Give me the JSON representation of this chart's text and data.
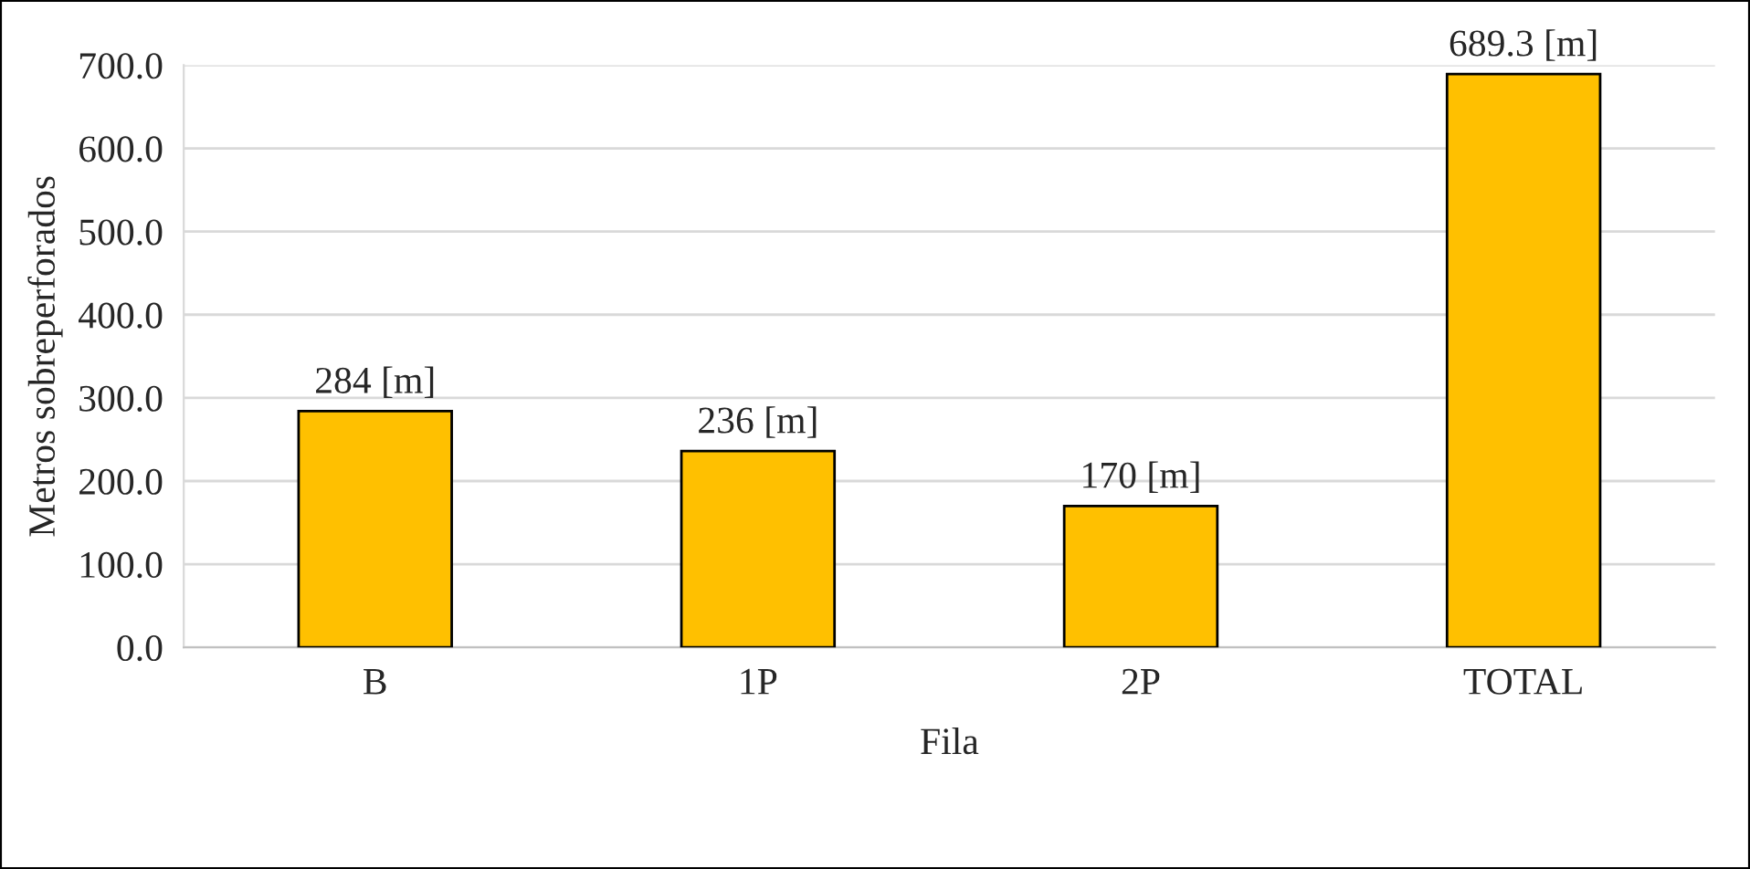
{
  "chart_data": {
    "type": "bar",
    "xlabel": "Fila",
    "ylabel": "Metros sobreperforados",
    "categories": [
      "B",
      "1P",
      "2P",
      "TOTAL"
    ],
    "values": [
      284,
      236,
      170,
      689.3
    ],
    "value_labels": [
      "284 [m]",
      "236 [m]",
      "170 [m]",
      "689.3 [m]"
    ],
    "color": "#ffc000",
    "ylim": [
      0,
      700
    ],
    "yticks": [
      {
        "value": 0,
        "label": "0.0"
      },
      {
        "value": 100,
        "label": "100.0"
      },
      {
        "value": 200,
        "label": "200.0"
      },
      {
        "value": 300,
        "label": "300.0"
      },
      {
        "value": 400,
        "label": "400.0"
      },
      {
        "value": 500,
        "label": "500.0"
      },
      {
        "value": 600,
        "label": "600.0"
      },
      {
        "value": 700,
        "label": "700.0"
      }
    ],
    "grid": "y",
    "legend": false
  }
}
